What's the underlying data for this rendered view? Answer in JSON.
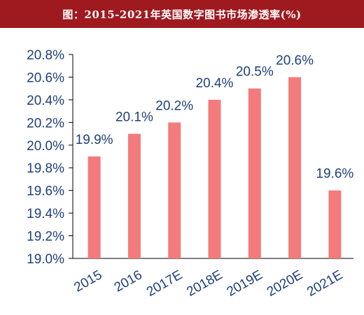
{
  "header": {
    "title": "图：2015-2021年英国数字图书市场渗透率(%)"
  },
  "chart_data": {
    "type": "bar",
    "title": "图：2015-2021年英国数字图书市场渗透率(%)",
    "categories": [
      "2015",
      "2016",
      "2017E",
      "2018E",
      "2019E",
      "2020E",
      "2021E"
    ],
    "values": [
      19.9,
      20.1,
      20.2,
      20.4,
      20.5,
      20.6,
      19.6
    ],
    "data_labels": [
      "19.9%",
      "20.1%",
      "20.2%",
      "20.4%",
      "20.5%",
      "20.6%",
      "19.6%"
    ],
    "ylim": [
      19.0,
      20.8
    ],
    "yticks": [
      19.0,
      19.2,
      19.4,
      19.6,
      19.8,
      20.0,
      20.2,
      20.4,
      20.6,
      20.8
    ],
    "ytick_labels": [
      "19.0%",
      "19.2%",
      "19.4%",
      "19.6%",
      "19.8%",
      "20.0%",
      "20.2%",
      "20.4%",
      "20.6%",
      "20.8%"
    ],
    "xlabel": "",
    "ylabel": "",
    "grid": false,
    "colors": {
      "bar": "#f47b7b",
      "axis_text": "#1f3f7a",
      "label_text": "#1f3f7a",
      "axis_line": "#000000",
      "title_bg": "#9e1a1f"
    }
  }
}
